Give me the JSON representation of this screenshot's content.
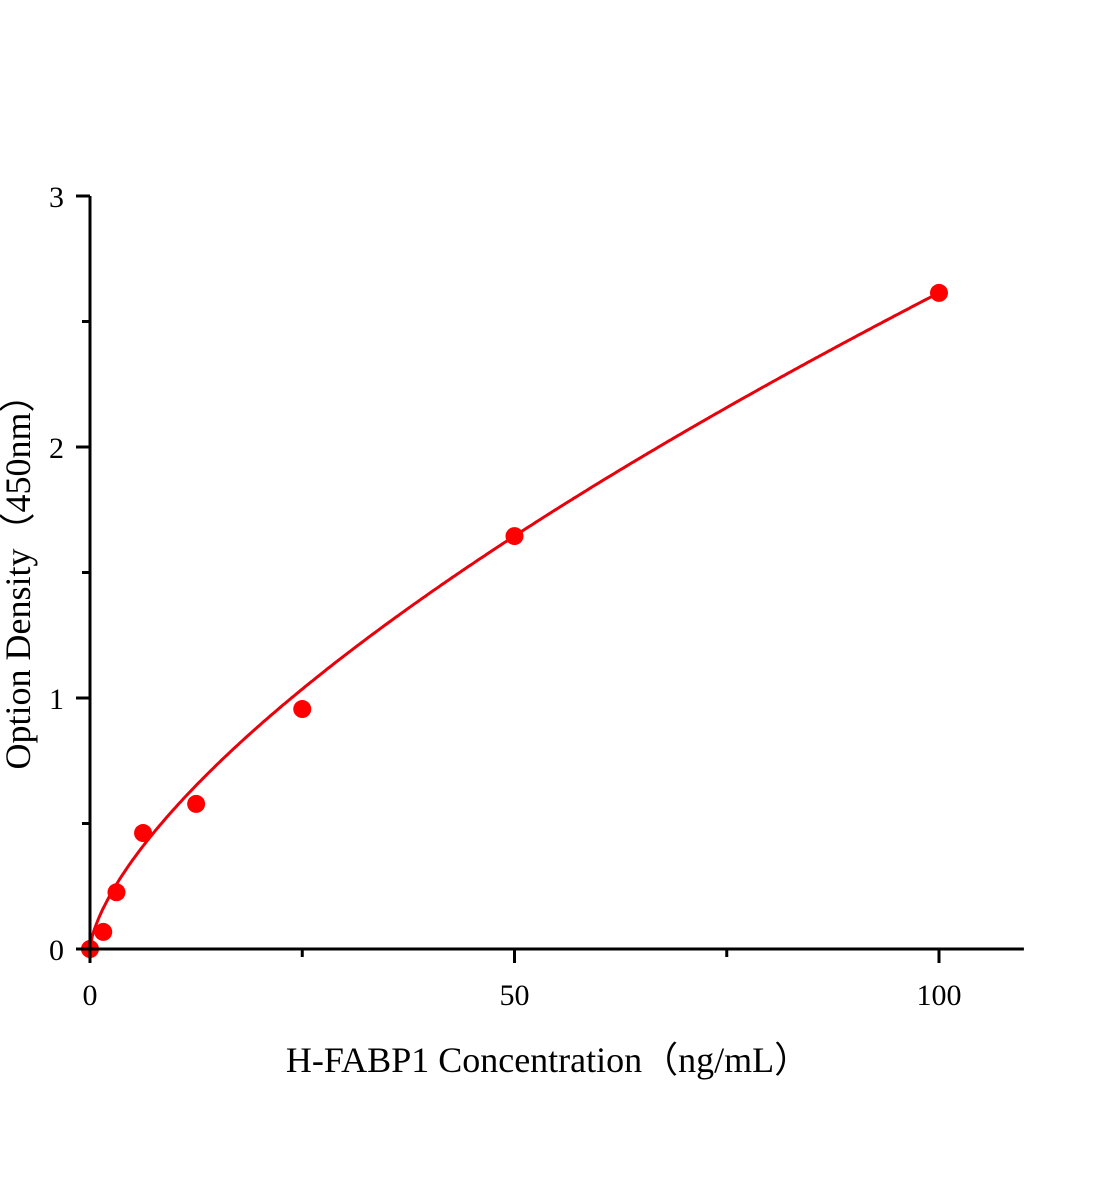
{
  "chart_data": {
    "type": "scatter",
    "title": "",
    "xlabel": "H-FABP1 Concentration（ng/mL）",
    "ylabel": "Option Density（450nm）",
    "xlim": [
      0,
      110
    ],
    "ylim": [
      0,
      3
    ],
    "x_ticks": [
      0,
      50,
      100
    ],
    "x_tick_labels": [
      "0",
      "50",
      "100"
    ],
    "x_minor_ticks": [
      25,
      75
    ],
    "y_ticks": [
      0,
      1,
      2,
      3
    ],
    "y_tick_labels": [
      "0",
      "1",
      "2",
      "3"
    ],
    "y_minor_ticks": [
      0.5,
      1.5,
      2.5
    ],
    "grid": false,
    "legend": "none",
    "points": {
      "x": [
        0,
        1.56,
        3.12,
        6.25,
        12.5,
        25,
        50,
        100
      ],
      "y": [
        0.0,
        0.068,
        0.226,
        0.462,
        0.578,
        0.956,
        1.645,
        2.614
      ]
    },
    "fit_curve": true,
    "colors": {
      "points": "#ff0000",
      "curve": "#e8000b",
      "axis": "#000000"
    }
  }
}
